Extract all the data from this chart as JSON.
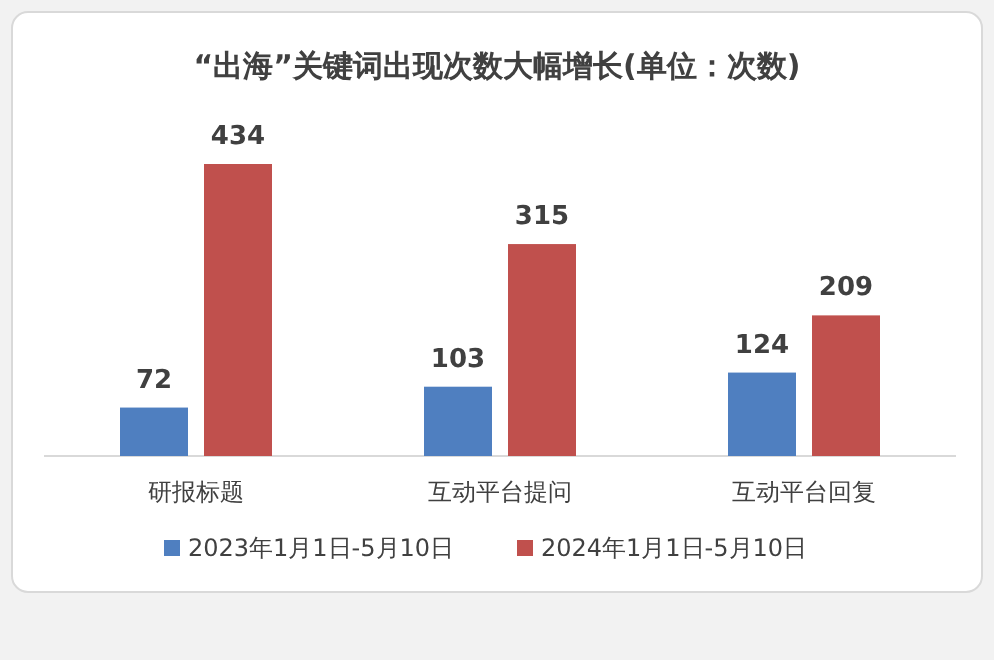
{
  "chart_data": {
    "type": "bar",
    "title": "“出海”关键词出现次数大幅增长(单位：次数)",
    "categories": [
      "研报标题",
      "互动平台提问",
      "互动平台回复"
    ],
    "series": [
      {
        "name": "2023年1月1日-5月10日",
        "color": "#4f7fc0",
        "values": [
          72,
          103,
          124
        ]
      },
      {
        "name": "2024年1月1日-5月10日",
        "color": "#c0504d",
        "values": [
          434,
          315,
          209
        ]
      }
    ],
    "data_labels": true,
    "legend": "bottom"
  }
}
